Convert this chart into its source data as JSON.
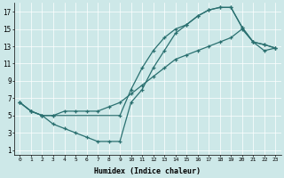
{
  "xlabel": "Humidex (Indice chaleur)",
  "background_color": "#cde8e8",
  "line_color": "#2a7070",
  "xlim": [
    -0.5,
    23.5
  ],
  "ylim": [
    0.5,
    18.0
  ],
  "xticks": [
    0,
    1,
    2,
    3,
    4,
    5,
    6,
    7,
    8,
    9,
    10,
    11,
    12,
    13,
    14,
    15,
    16,
    17,
    18,
    19,
    20,
    21,
    22,
    23
  ],
  "yticks": [
    1,
    3,
    5,
    7,
    9,
    11,
    13,
    15,
    17
  ],
  "curve_up_x": [
    0,
    1,
    2,
    3,
    9,
    10,
    11,
    12,
    13,
    14,
    15,
    16,
    17,
    18,
    19,
    20,
    21,
    22,
    23
  ],
  "curve_up_y": [
    6.5,
    5.5,
    5.0,
    5.0,
    5.0,
    8.0,
    10.5,
    12.5,
    14.0,
    15.0,
    15.5,
    16.5,
    17.2,
    17.5,
    17.5,
    15.2,
    13.5,
    13.2,
    12.8
  ],
  "curve_dip_x": [
    0,
    1,
    2,
    3,
    4,
    5,
    6,
    7,
    8,
    9,
    10,
    11,
    12,
    13,
    14,
    15,
    16,
    17,
    18,
    19,
    20,
    21,
    22,
    23
  ],
  "curve_dip_y": [
    6.5,
    5.5,
    5.0,
    4.0,
    3.5,
    3.0,
    2.5,
    2.0,
    2.0,
    2.0,
    6.5,
    8.0,
    10.5,
    12.5,
    14.5,
    15.5,
    16.5,
    17.2,
    17.5,
    17.5,
    15.2,
    13.5,
    13.2,
    12.8
  ],
  "curve_diag_x": [
    0,
    1,
    2,
    3,
    4,
    5,
    6,
    7,
    8,
    9,
    10,
    11,
    12,
    13,
    14,
    15,
    16,
    17,
    18,
    19,
    20,
    21,
    22,
    23
  ],
  "curve_diag_y": [
    6.5,
    5.5,
    5.0,
    5.0,
    5.5,
    5.5,
    5.5,
    5.5,
    6.0,
    6.5,
    7.5,
    8.5,
    9.5,
    10.5,
    11.5,
    12.0,
    12.5,
    13.0,
    13.5,
    14.0,
    15.0,
    13.5,
    12.5,
    12.8
  ]
}
